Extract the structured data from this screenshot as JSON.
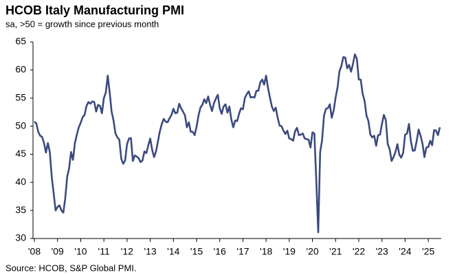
{
  "chart_data": {
    "type": "line",
    "title": "HCOB Italy Manufacturing PMI",
    "subtitle": "sa, >50 = growth since previous month",
    "source": "Source: HCOB, S&P Global PMI.",
    "color": "#3b4a7d",
    "ylim": [
      30,
      65
    ],
    "yticks": [
      30,
      35,
      40,
      45,
      50,
      55,
      60,
      65
    ],
    "categories": [
      "'08",
      null,
      null,
      null,
      null,
      null,
      null,
      null,
      null,
      null,
      null,
      null,
      "'09",
      null,
      null,
      null,
      null,
      null,
      null,
      null,
      null,
      null,
      null,
      null,
      "'10",
      null,
      null,
      null,
      null,
      null,
      null,
      null,
      null,
      null,
      null,
      null,
      "'11",
      null,
      null,
      null,
      null,
      null,
      null,
      null,
      null,
      null,
      null,
      null,
      "'12",
      null,
      null,
      null,
      null,
      null,
      null,
      null,
      null,
      null,
      null,
      null,
      "'13",
      null,
      null,
      null,
      null,
      null,
      null,
      null,
      null,
      null,
      null,
      null,
      "'14",
      null,
      null,
      null,
      null,
      null,
      null,
      null,
      null,
      null,
      null,
      null,
      "'15",
      null,
      null,
      null,
      null,
      null,
      null,
      null,
      null,
      null,
      null,
      null,
      "'16",
      null,
      null,
      null,
      null,
      null,
      null,
      null,
      null,
      null,
      null,
      null,
      "'17",
      null,
      null,
      null,
      null,
      null,
      null,
      null,
      null,
      null,
      null,
      null,
      "'18",
      null,
      null,
      null,
      null,
      null,
      null,
      null,
      null,
      null,
      null,
      null,
      "'19",
      null,
      null,
      null,
      null,
      null,
      null,
      null,
      null,
      null,
      null,
      null,
      "'20",
      null,
      null,
      null,
      null,
      null,
      null,
      null,
      null,
      null,
      null,
      null,
      "'21",
      null,
      null,
      null,
      null,
      null,
      null,
      null,
      null,
      null,
      null,
      null,
      "'22",
      null,
      null,
      null,
      null,
      null,
      null,
      null,
      null,
      null,
      null,
      null,
      "'23",
      null,
      null,
      null,
      null,
      null,
      null,
      null,
      null,
      null,
      null,
      null,
      "'24",
      null,
      null,
      null,
      null,
      null,
      null,
      null,
      null,
      null,
      null,
      null,
      "'25",
      null,
      null,
      null,
      null,
      null,
      null
    ],
    "values": [
      50.8,
      50.5,
      49.0,
      48.3,
      48.1,
      47.0,
      45.3,
      47.0,
      45.4,
      41.0,
      38.0,
      35.0,
      35.6,
      35.9,
      35.0,
      34.6,
      37.2,
      41.0,
      42.5,
      45.4,
      44.0,
      47.0,
      48.5,
      49.8,
      50.6,
      51.6,
      52.0,
      53.6,
      54.3,
      54.0,
      54.4,
      54.3,
      52.6,
      53.8,
      53.6,
      52.3,
      55.0,
      56.0,
      59.0,
      56.0,
      52.6,
      51.0,
      48.7,
      48.0,
      47.6,
      44.2,
      43.3,
      43.9,
      46.8,
      47.8,
      47.9,
      43.8,
      44.8,
      44.6,
      44.3,
      43.6,
      43.9,
      45.5,
      45.2,
      46.6,
      47.8,
      45.8,
      44.5,
      45.5,
      47.3,
      49.1,
      50.4,
      51.3,
      50.8,
      50.7,
      51.4,
      52.0,
      53.1,
      52.3,
      52.4,
      54.0,
      53.2,
      52.6,
      51.9,
      49.8,
      50.7,
      49.0,
      49.0,
      48.4,
      49.9,
      51.9,
      53.3,
      53.8,
      54.8,
      54.1,
      55.3,
      53.8,
      52.7,
      54.1,
      54.9,
      55.6,
      53.2,
      52.2,
      53.5,
      53.9,
      52.4,
      53.5,
      51.2,
      49.8,
      51.0,
      50.9,
      52.2,
      53.2,
      53.0,
      55.0,
      55.7,
      56.2,
      55.1,
      55.2,
      55.1,
      56.3,
      56.3,
      57.8,
      58.3,
      57.4,
      59.0,
      56.8,
      55.1,
      53.5,
      52.7,
      53.3,
      51.5,
      50.1,
      50.0,
      49.2,
      48.6,
      49.2,
      47.8,
      47.7,
      47.4,
      49.1,
      49.7,
      48.4,
      48.5,
      48.7,
      47.8,
      47.7,
      47.6,
      46.2,
      48.9,
      48.7,
      40.3,
      31.1,
      45.4,
      47.5,
      51.9,
      53.1,
      53.2,
      53.9,
      51.5,
      52.8,
      55.1,
      56.9,
      59.8,
      60.7,
      62.3,
      62.2,
      60.3,
      60.9,
      59.7,
      61.1,
      62.8,
      62.0,
      58.3,
      58.3,
      55.8,
      54.5,
      51.9,
      50.9,
      48.5,
      48.0,
      48.3,
      46.5,
      48.4,
      48.5,
      50.4,
      52.0,
      51.1,
      46.8,
      45.9,
      43.8,
      44.5,
      45.4,
      46.8,
      44.9,
      44.4,
      45.3,
      48.5,
      48.7,
      50.4,
      47.3,
      45.6,
      45.7,
      47.4,
      49.4,
      48.3,
      46.9,
      44.5,
      46.2,
      46.3,
      47.4,
      46.6,
      49.3,
      49.2,
      48.4,
      49.8
    ]
  }
}
